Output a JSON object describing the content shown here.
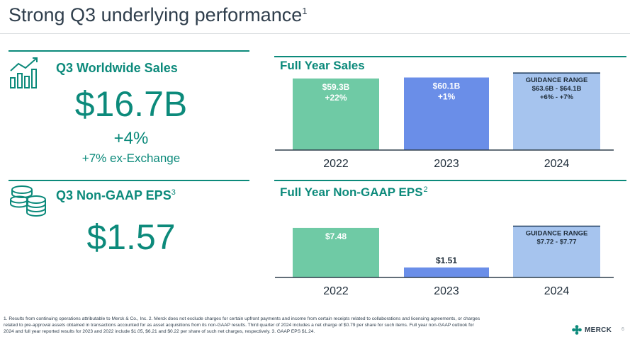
{
  "slide": {
    "title": "Strong Q3 underlying performance",
    "title_sup": "1",
    "page_number": "6"
  },
  "sales": {
    "title": "Q3 Worldwide Sales",
    "value": "$16.7B",
    "growth": "+4%",
    "ex_fx": "+7% ex-Exchange",
    "icon": "growth-chart-icon"
  },
  "eps": {
    "title": "Q3 Non-GAAP EPS",
    "title_sup": "3",
    "value": "$1.57",
    "icon": "coin-stack-icon"
  },
  "colors": {
    "teal": "#0c8a7b",
    "bar_2022": "#6fcaa5",
    "bar_2023": "#6a8ee8",
    "bar_2024": "#a6c4ee",
    "axis": "#2f3e4c"
  },
  "chart_data": [
    {
      "type": "bar",
      "title": "Full Year Sales",
      "categories": [
        "2022",
        "2023",
        "2024"
      ],
      "values": [
        59.3,
        60.1,
        63.85
      ],
      "range_2024": [
        63.6,
        64.1
      ],
      "labels": [
        [
          "$59.3B",
          "+22%"
        ],
        [
          "$60.1B",
          "+1%"
        ],
        [
          "GUIDANCE RANGE",
          "$63.6B - $64.1B",
          "+6% - +7%"
        ]
      ]
    },
    {
      "type": "bar",
      "title": "Full Year Non-GAAP EPS",
      "title_sup": "2",
      "categories": [
        "2022",
        "2023",
        "2024"
      ],
      "values": [
        7.48,
        1.51,
        7.745
      ],
      "range_2024": [
        7.72,
        7.77
      ],
      "labels": [
        [
          "$7.48"
        ],
        [
          "$1.51"
        ],
        [
          "GUIDANCE RANGE",
          "$7.72 - $7.77"
        ]
      ]
    }
  ],
  "footnote": "1. Results from continuing operations attributable to Merck & Co., Inc.  2. Merck does not exclude charges for certain upfront payments and income from certain receipts related to collaborations and licensing agreements, or charges related to pre-approval assets obtained in transactions accounted for as asset acquisitions from its non-GAAP results. Third quarter of 2024 includes a net charge of $0.79 per share for such items.  Full year non-GAAP outlook for 2024 and full year reported results for 2023 and 2022 include $1.05, $6.21 and $0.22 per share of such net charges, respectively.  3. GAAP EPS $1.24.",
  "logo": {
    "text": "MERCK"
  }
}
